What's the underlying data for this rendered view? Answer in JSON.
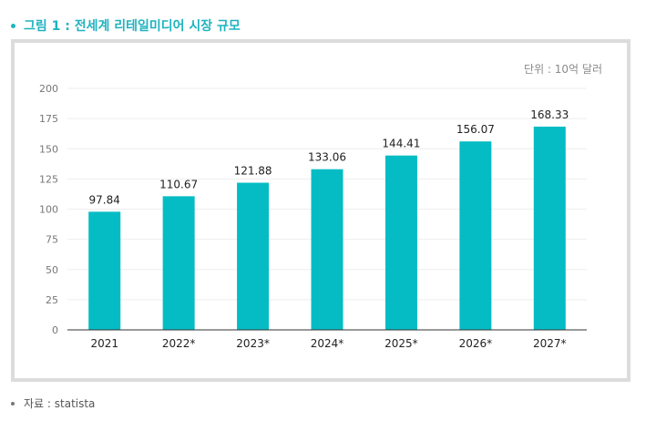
{
  "heading": "그림 1 : 전세계 리테일미디어 시장 규모",
  "unit_label": "단위 : 10억 달러",
  "source": "자료 : statista",
  "colors": {
    "bar": "#05bcc4",
    "heading": "#1fb3c0"
  },
  "chart_data": {
    "type": "bar",
    "categories": [
      "2021",
      "2022*",
      "2023*",
      "2024*",
      "2025*",
      "2026*",
      "2027*"
    ],
    "values": [
      97.84,
      110.67,
      121.88,
      133.06,
      144.41,
      156.07,
      168.33
    ],
    "value_labels": [
      "97.84",
      "110.67",
      "121.88",
      "133.06",
      "144.41",
      "156.07",
      "168.33"
    ],
    "yticks": [
      "0",
      "25",
      "50",
      "75",
      "100",
      "125",
      "150",
      "175",
      "200"
    ],
    "ylim": [
      0,
      200
    ],
    "grid": true,
    "legend": "none"
  }
}
